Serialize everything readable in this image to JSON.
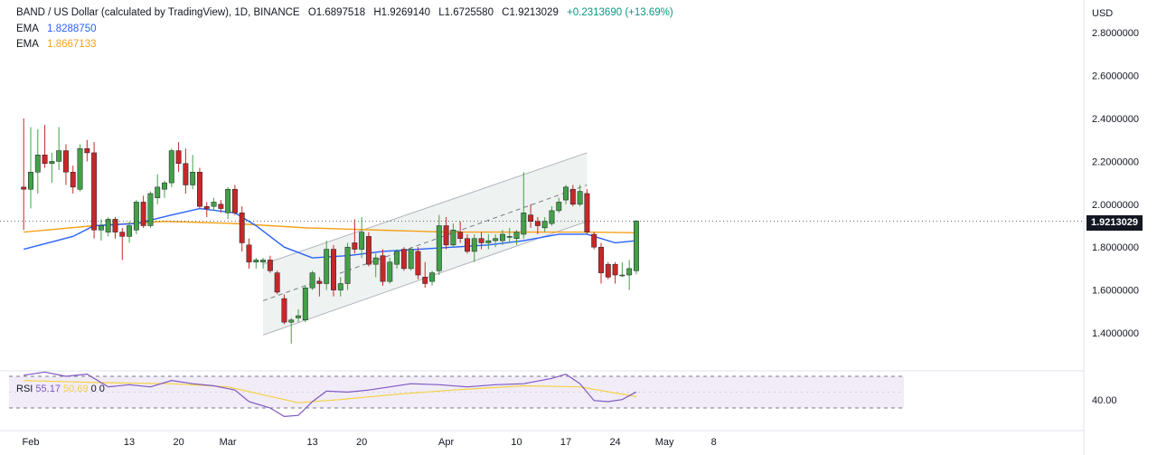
{
  "header": {
    "symbol": "BAND / US Dollar (calculated by TradingView), 1D, BINANCE",
    "open": "O1.6897518",
    "high": "H1.9269140",
    "low": "L1.6725580",
    "close": "C1.9213029",
    "change": "+0.2313690 (+13.69%)"
  },
  "legend": {
    "ema1_label": "EMA",
    "ema1_value": "1.8288750",
    "ema2_label": "EMA",
    "ema2_value": "1.8667133"
  },
  "rsi_legend": {
    "label": "RSI",
    "value": "55.17",
    "ma_value": "50.69",
    "extra1": "0",
    "extra2": "0"
  },
  "price_axis": {
    "currency": "USD",
    "last_price": "1.9213029",
    "rsi_level": "40.00"
  },
  "colors": {
    "up": "#43a047",
    "down": "#c62828",
    "ema_fast": "#2962ff",
    "ema_slow": "#f7a21b",
    "rsi_line": "#7e57c2",
    "rsi_ma": "#f5d142",
    "channel_fill": "#eef2f0"
  },
  "chart_data": {
    "type": "candlestick",
    "title": "BAND / US Dollar (calculated by TradingView), 1D, BINANCE",
    "ylabel": "USD",
    "ylim": [
      1.2,
      2.95
    ],
    "y_ticks": [
      "2.8000000",
      "2.6000000",
      "2.4000000",
      "2.2000000",
      "2.0000000",
      "1.8000000",
      "1.6000000",
      "1.4000000"
    ],
    "x_ticks": [
      "Feb",
      "13",
      "20",
      "Mar",
      "13",
      "20",
      "Apr",
      "10",
      "17",
      "24",
      "May",
      "8"
    ],
    "x_tick_days": [
      0,
      14,
      21,
      28,
      40,
      47,
      59,
      69,
      76,
      83,
      90,
      97
    ],
    "grid": false,
    "candles": [
      {
        "day": -1,
        "o": 2.08,
        "h": 2.4,
        "l": 1.88,
        "c": 2.07
      },
      {
        "day": 0,
        "o": 2.07,
        "h": 2.36,
        "l": 1.98,
        "c": 2.15
      },
      {
        "day": 1,
        "o": 2.15,
        "h": 2.35,
        "l": 2.05,
        "c": 2.23
      },
      {
        "day": 2,
        "o": 2.23,
        "h": 2.37,
        "l": 2.17,
        "c": 2.19
      },
      {
        "day": 3,
        "o": 2.19,
        "h": 2.24,
        "l": 2.1,
        "c": 2.2
      },
      {
        "day": 4,
        "o": 2.2,
        "h": 2.36,
        "l": 2.16,
        "c": 2.25
      },
      {
        "day": 5,
        "o": 2.25,
        "h": 2.28,
        "l": 2.09,
        "c": 2.15
      },
      {
        "day": 6,
        "o": 2.15,
        "h": 2.18,
        "l": 2.05,
        "c": 2.08
      },
      {
        "day": 7,
        "o": 2.07,
        "h": 2.28,
        "l": 2.06,
        "c": 2.26
      },
      {
        "day": 8,
        "o": 2.26,
        "h": 2.3,
        "l": 2.2,
        "c": 2.24
      },
      {
        "day": 9,
        "o": 2.24,
        "h": 2.29,
        "l": 1.84,
        "c": 1.88
      },
      {
        "day": 10,
        "o": 1.88,
        "h": 1.93,
        "l": 1.83,
        "c": 1.9
      },
      {
        "day": 11,
        "o": 1.87,
        "h": 1.94,
        "l": 1.85,
        "c": 1.93
      },
      {
        "day": 12,
        "o": 1.93,
        "h": 1.94,
        "l": 1.84,
        "c": 1.87
      },
      {
        "day": 13,
        "o": 1.87,
        "h": 1.89,
        "l": 1.74,
        "c": 1.85
      },
      {
        "day": 14,
        "o": 1.85,
        "h": 1.92,
        "l": 1.82,
        "c": 1.9
      },
      {
        "day": 15,
        "o": 1.88,
        "h": 2.02,
        "l": 1.86,
        "c": 2.01
      },
      {
        "day": 16,
        "o": 2.01,
        "h": 2.04,
        "l": 1.89,
        "c": 1.9
      },
      {
        "day": 17,
        "o": 1.9,
        "h": 2.06,
        "l": 1.89,
        "c": 2.05
      },
      {
        "day": 18,
        "o": 2.03,
        "h": 2.14,
        "l": 2.0,
        "c": 2.08
      },
      {
        "day": 19,
        "o": 2.07,
        "h": 2.11,
        "l": 2.03,
        "c": 2.1
      },
      {
        "day": 20,
        "o": 2.1,
        "h": 2.26,
        "l": 2.08,
        "c": 2.25
      },
      {
        "day": 21,
        "o": 2.25,
        "h": 2.29,
        "l": 2.15,
        "c": 2.19
      },
      {
        "day": 22,
        "o": 2.19,
        "h": 2.26,
        "l": 2.05,
        "c": 2.09
      },
      {
        "day": 23,
        "o": 2.09,
        "h": 2.23,
        "l": 2.07,
        "c": 2.15
      },
      {
        "day": 24,
        "o": 2.15,
        "h": 2.17,
        "l": 1.98,
        "c": 1.99
      },
      {
        "day": 25,
        "o": 1.99,
        "h": 2.01,
        "l": 1.94,
        "c": 1.98
      },
      {
        "day": 26,
        "o": 1.99,
        "h": 2.03,
        "l": 1.97,
        "c": 2.01
      },
      {
        "day": 27,
        "o": 2.0,
        "h": 2.02,
        "l": 1.96,
        "c": 1.98
      },
      {
        "day": 28,
        "o": 1.96,
        "h": 2.08,
        "l": 1.93,
        "c": 2.07
      },
      {
        "day": 29,
        "o": 2.07,
        "h": 2.09,
        "l": 1.95,
        "c": 1.96
      },
      {
        "day": 30,
        "o": 1.96,
        "h": 1.99,
        "l": 1.78,
        "c": 1.82
      },
      {
        "day": 31,
        "o": 1.81,
        "h": 1.84,
        "l": 1.7,
        "c": 1.73
      },
      {
        "day": 32,
        "o": 1.73,
        "h": 1.75,
        "l": 1.7,
        "c": 1.74
      },
      {
        "day": 33,
        "o": 1.73,
        "h": 1.75,
        "l": 1.7,
        "c": 1.74
      },
      {
        "day": 34,
        "o": 1.74,
        "h": 1.76,
        "l": 1.68,
        "c": 1.69
      },
      {
        "day": 35,
        "o": 1.68,
        "h": 1.69,
        "l": 1.58,
        "c": 1.59
      },
      {
        "day": 36,
        "o": 1.56,
        "h": 1.58,
        "l": 1.44,
        "c": 1.45
      },
      {
        "day": 37,
        "o": 1.45,
        "h": 1.47,
        "l": 1.35,
        "c": 1.46
      },
      {
        "day": 38,
        "o": 1.47,
        "h": 1.51,
        "l": 1.45,
        "c": 1.48
      },
      {
        "day": 39,
        "o": 1.46,
        "h": 1.62,
        "l": 1.45,
        "c": 1.61
      },
      {
        "day": 40,
        "o": 1.61,
        "h": 1.69,
        "l": 1.6,
        "c": 1.68
      },
      {
        "day": 41,
        "o": 1.64,
        "h": 1.66,
        "l": 1.57,
        "c": 1.63
      },
      {
        "day": 42,
        "o": 1.63,
        "h": 1.83,
        "l": 1.6,
        "c": 1.79
      },
      {
        "day": 43,
        "o": 1.79,
        "h": 1.81,
        "l": 1.57,
        "c": 1.6
      },
      {
        "day": 44,
        "o": 1.6,
        "h": 1.66,
        "l": 1.57,
        "c": 1.63
      },
      {
        "day": 45,
        "o": 1.63,
        "h": 1.82,
        "l": 1.6,
        "c": 1.8
      },
      {
        "day": 46,
        "o": 1.82,
        "h": 1.93,
        "l": 1.77,
        "c": 1.79
      },
      {
        "day": 47,
        "o": 1.79,
        "h": 1.94,
        "l": 1.75,
        "c": 1.87
      },
      {
        "day": 48,
        "o": 1.85,
        "h": 1.87,
        "l": 1.71,
        "c": 1.72
      },
      {
        "day": 49,
        "o": 1.72,
        "h": 1.77,
        "l": 1.66,
        "c": 1.75
      },
      {
        "day": 50,
        "o": 1.76,
        "h": 1.79,
        "l": 1.62,
        "c": 1.64
      },
      {
        "day": 51,
        "o": 1.64,
        "h": 1.75,
        "l": 1.63,
        "c": 1.73
      },
      {
        "day": 52,
        "o": 1.72,
        "h": 1.79,
        "l": 1.7,
        "c": 1.78
      },
      {
        "day": 53,
        "o": 1.79,
        "h": 1.8,
        "l": 1.69,
        "c": 1.7
      },
      {
        "day": 54,
        "o": 1.7,
        "h": 1.8,
        "l": 1.69,
        "c": 1.79
      },
      {
        "day": 55,
        "o": 1.78,
        "h": 1.8,
        "l": 1.65,
        "c": 1.67
      },
      {
        "day": 56,
        "o": 1.66,
        "h": 1.73,
        "l": 1.61,
        "c": 1.63
      },
      {
        "day": 57,
        "o": 1.64,
        "h": 1.69,
        "l": 1.62,
        "c": 1.68
      },
      {
        "day": 58,
        "o": 1.69,
        "h": 1.95,
        "l": 1.67,
        "c": 1.9
      },
      {
        "day": 59,
        "o": 1.9,
        "h": 1.94,
        "l": 1.79,
        "c": 1.81
      },
      {
        "day": 60,
        "o": 1.81,
        "h": 1.91,
        "l": 1.8,
        "c": 1.88
      },
      {
        "day": 61,
        "o": 1.87,
        "h": 1.92,
        "l": 1.82,
        "c": 1.84
      },
      {
        "day": 62,
        "o": 1.84,
        "h": 1.86,
        "l": 1.77,
        "c": 1.78
      },
      {
        "day": 63,
        "o": 1.78,
        "h": 1.86,
        "l": 1.73,
        "c": 1.84
      },
      {
        "day": 64,
        "o": 1.84,
        "h": 1.87,
        "l": 1.79,
        "c": 1.82
      },
      {
        "day": 65,
        "o": 1.82,
        "h": 1.86,
        "l": 1.79,
        "c": 1.83
      },
      {
        "day": 66,
        "o": 1.83,
        "h": 1.86,
        "l": 1.8,
        "c": 1.84
      },
      {
        "day": 67,
        "o": 1.83,
        "h": 1.88,
        "l": 1.81,
        "c": 1.86
      },
      {
        "day": 68,
        "o": 1.85,
        "h": 1.89,
        "l": 1.82,
        "c": 1.85
      },
      {
        "day": 69,
        "o": 1.84,
        "h": 1.88,
        "l": 1.81,
        "c": 1.87
      },
      {
        "day": 70,
        "o": 1.86,
        "h": 2.15,
        "l": 1.84,
        "c": 1.96
      },
      {
        "day": 71,
        "o": 1.95,
        "h": 2.0,
        "l": 1.89,
        "c": 1.92
      },
      {
        "day": 72,
        "o": 1.92,
        "h": 1.94,
        "l": 1.86,
        "c": 1.9
      },
      {
        "day": 73,
        "o": 1.89,
        "h": 1.94,
        "l": 1.87,
        "c": 1.92
      },
      {
        "day": 74,
        "o": 1.91,
        "h": 1.99,
        "l": 1.9,
        "c": 1.97
      },
      {
        "day": 75,
        "o": 1.97,
        "h": 2.03,
        "l": 1.96,
        "c": 2.01
      },
      {
        "day": 76,
        "o": 2.02,
        "h": 2.09,
        "l": 2.0,
        "c": 2.08
      },
      {
        "day": 77,
        "o": 2.07,
        "h": 2.09,
        "l": 1.99,
        "c": 2.0
      },
      {
        "day": 78,
        "o": 2.0,
        "h": 2.09,
        "l": 1.99,
        "c": 2.06
      },
      {
        "day": 79,
        "o": 2.05,
        "h": 2.07,
        "l": 1.86,
        "c": 1.87
      },
      {
        "day": 80,
        "o": 1.86,
        "h": 1.87,
        "l": 1.79,
        "c": 1.8
      },
      {
        "day": 81,
        "o": 1.8,
        "h": 1.82,
        "l": 1.63,
        "c": 1.68
      },
      {
        "day": 82,
        "o": 1.72,
        "h": 1.73,
        "l": 1.65,
        "c": 1.66
      },
      {
        "day": 83,
        "o": 1.72,
        "h": 1.73,
        "l": 1.63,
        "c": 1.67
      },
      {
        "day": 84,
        "o": 1.67,
        "h": 1.73,
        "l": 1.66,
        "c": 1.67
      },
      {
        "day": 85,
        "o": 1.67,
        "h": 1.74,
        "l": 1.6,
        "c": 1.7
      },
      {
        "day": 86,
        "o": 1.6897518,
        "h": 1.926914,
        "l": 1.672558,
        "c": 1.9213029
      }
    ],
    "ema_fast": {
      "name": "EMA",
      "days": [
        -1,
        6,
        9,
        15,
        20,
        24,
        29,
        32,
        36,
        40,
        45,
        50,
        55,
        60,
        65,
        70,
        75,
        79,
        83,
        86
      ],
      "values": [
        1.79,
        1.85,
        1.9,
        1.91,
        1.95,
        1.98,
        1.96,
        1.9,
        1.8,
        1.75,
        1.76,
        1.78,
        1.79,
        1.8,
        1.81,
        1.83,
        1.86,
        1.86,
        1.82,
        1.83
      ]
    },
    "ema_slow": {
      "name": "EMA",
      "days": [
        -1,
        9,
        19,
        29,
        39,
        49,
        59,
        69,
        79,
        86
      ],
      "values": [
        1.87,
        1.9,
        1.92,
        1.91,
        1.89,
        1.88,
        1.87,
        1.87,
        1.87,
        1.867
      ]
    },
    "channel": {
      "start_day": 33,
      "end_day": 79,
      "upper": [
        1.72,
        2.24
      ],
      "middle": [
        1.55,
        2.09
      ],
      "lower": [
        1.39,
        1.92
      ]
    },
    "rsi": {
      "ylim": [
        30,
        80
      ],
      "levels": [
        70,
        40
      ],
      "days": [
        -1,
        2,
        5,
        8,
        11,
        14,
        17,
        20,
        23,
        26,
        29,
        31,
        34,
        36,
        38,
        40,
        42,
        45,
        48,
        51,
        54,
        58,
        62,
        66,
        70,
        74,
        76,
        78,
        80,
        82,
        84,
        86
      ],
      "values": [
        71,
        74,
        70,
        72,
        60,
        62,
        60,
        66,
        63,
        61,
        57,
        46,
        40,
        32,
        33,
        46,
        56,
        55,
        57,
        60,
        63,
        62,
        60,
        62,
        63,
        68,
        72,
        63,
        47,
        46,
        48,
        55.17
      ],
      "ma_days": [
        -1,
        10,
        20,
        28,
        34,
        38,
        44,
        52,
        60,
        70,
        78,
        86
      ],
      "ma_values": [
        66,
        64,
        63,
        60,
        51,
        45,
        48,
        53,
        57,
        61,
        60,
        50.69
      ]
    }
  }
}
